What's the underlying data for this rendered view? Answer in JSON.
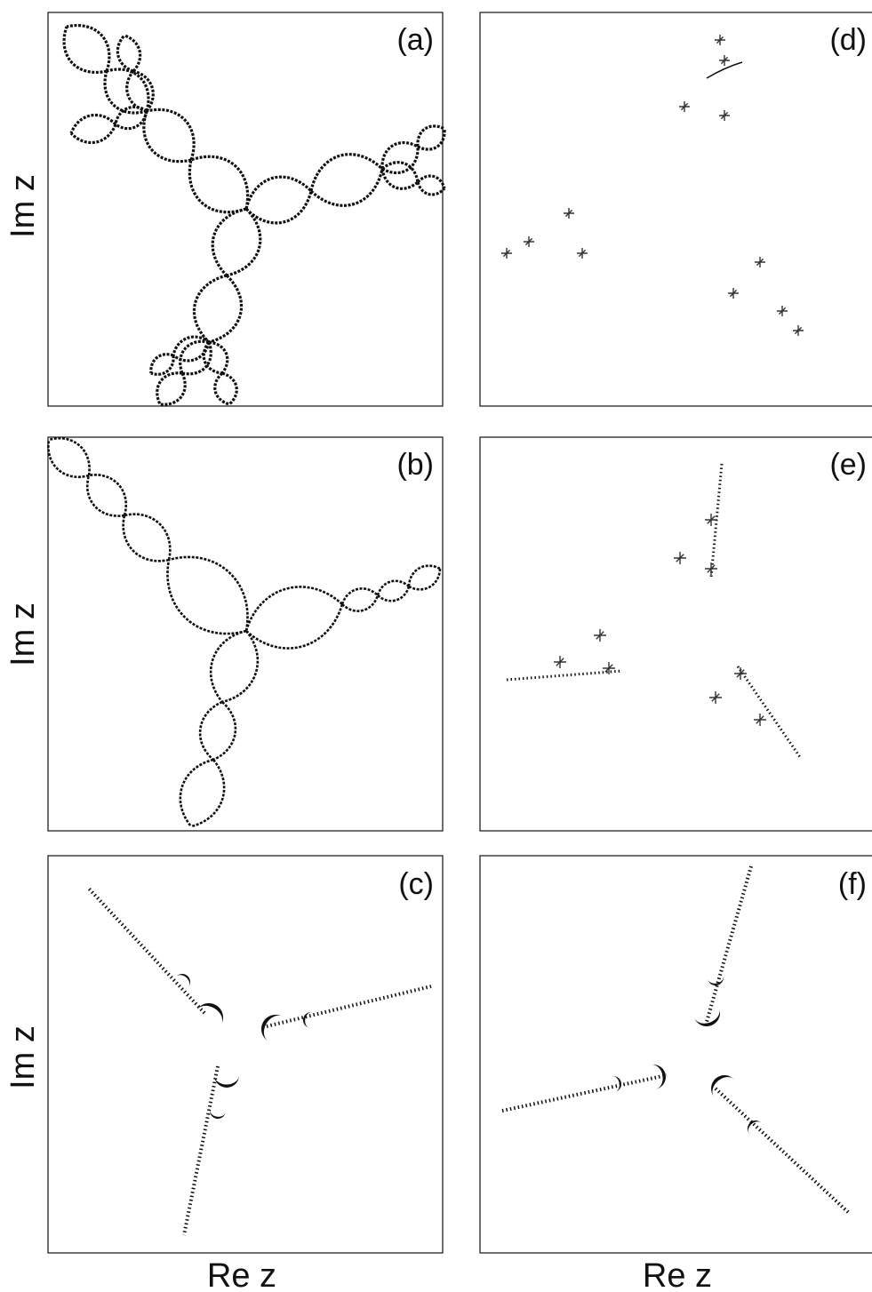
{
  "panels": [
    {
      "label": "(a)"
    },
    {
      "label": "(b)"
    },
    {
      "label": "(c)"
    },
    {
      "label": "(d)"
    },
    {
      "label": "(e)"
    },
    {
      "label": "(f)"
    }
  ],
  "y_labels": [
    "Im z",
    "Im z",
    "Im z"
  ],
  "x_labels": [
    "Re z",
    "Re z"
  ]
}
